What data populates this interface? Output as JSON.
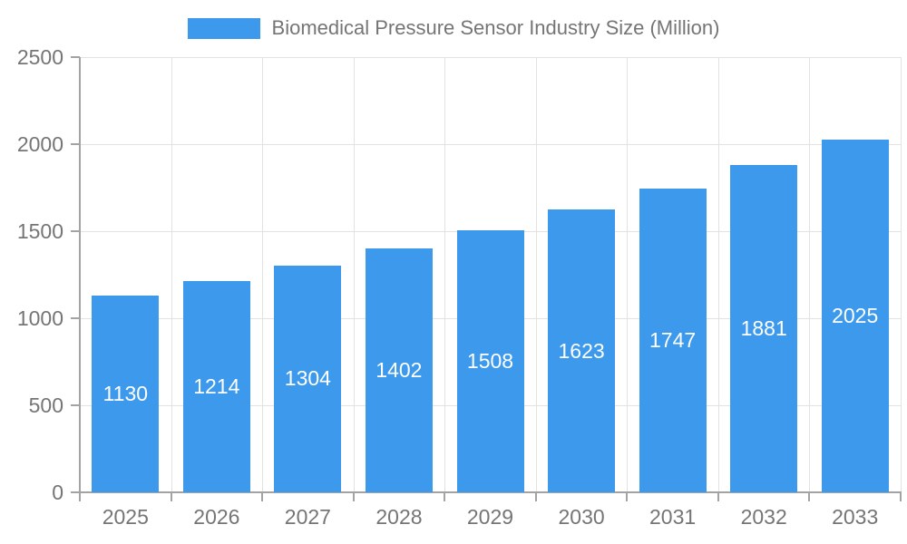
{
  "legend": {
    "label": "Biomedical Pressure Sensor Industry Size (Million)"
  },
  "chart_data": {
    "type": "bar",
    "title": "Biomedical Pressure Sensor Industry Size (Million)",
    "categories": [
      "2025",
      "2026",
      "2027",
      "2028",
      "2029",
      "2030",
      "2031",
      "2032",
      "2033"
    ],
    "values": [
      1130,
      1214,
      1304,
      1402,
      1508,
      1623,
      1747,
      1881,
      2025
    ],
    "xlabel": "",
    "ylabel": "",
    "ylim": [
      0,
      2500
    ],
    "yticks": [
      0,
      500,
      1000,
      1500,
      2000,
      2500
    ],
    "grid": true,
    "legend_position": "top",
    "bar_color": "#3C99EC",
    "value_label_color": "#FFFFFF",
    "axis_text_color": "#757575",
    "grid_color": "#E2E2E2",
    "axis_line_color": "#A3A3A3"
  }
}
